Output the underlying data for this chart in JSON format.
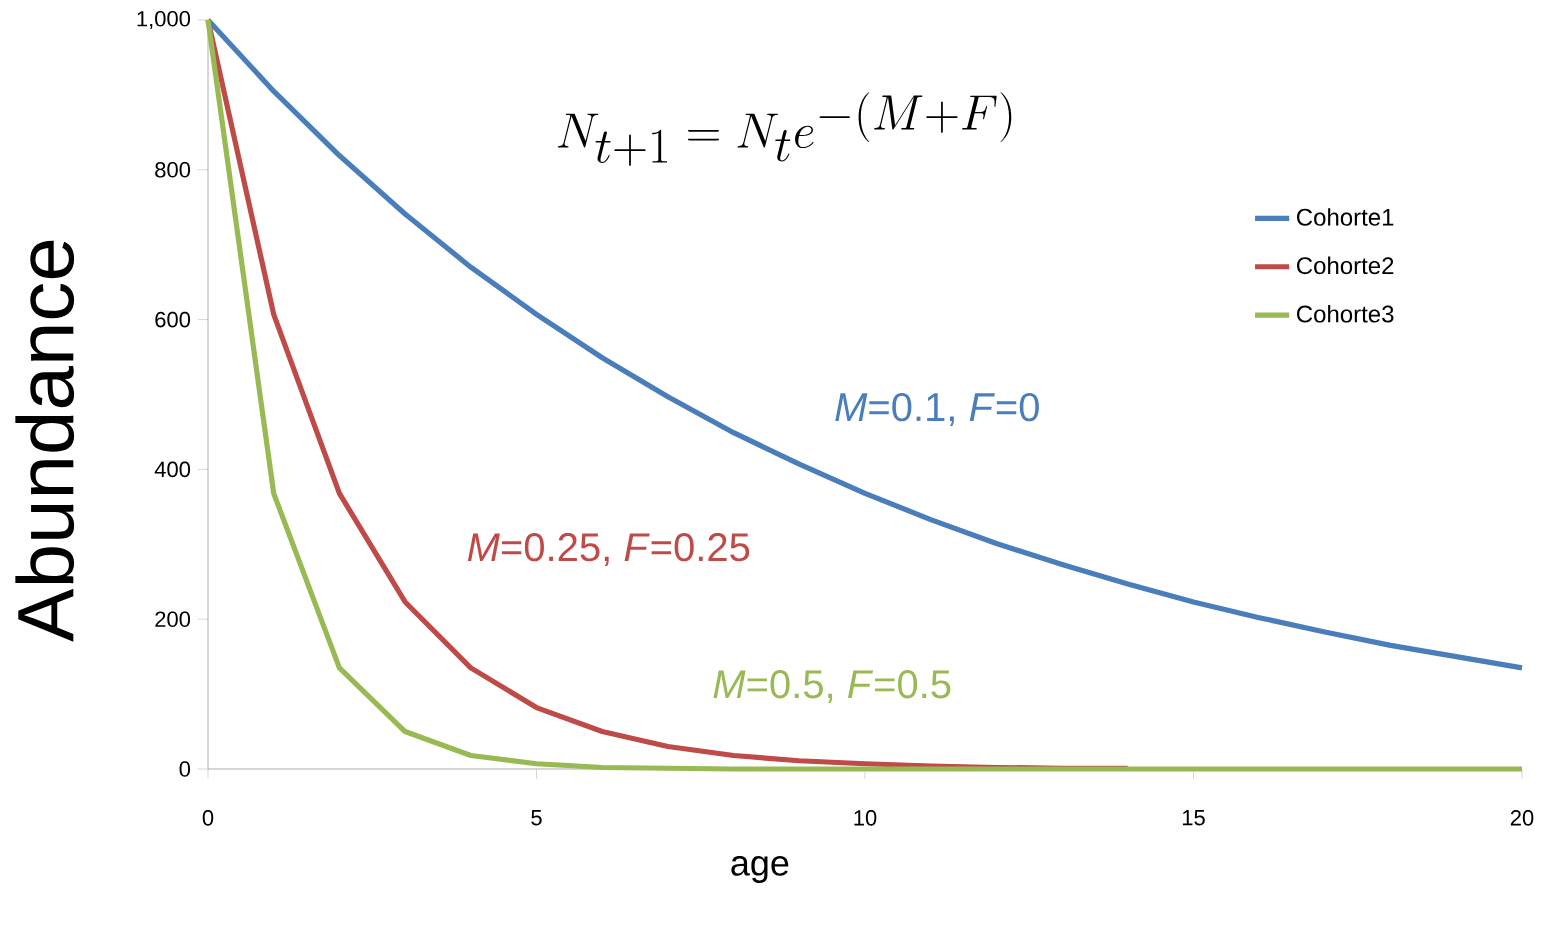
{
  "chart_data": {
    "type": "line",
    "title": "N_{t+1} = N_t e^{-(M+F)}",
    "xlabel": "age",
    "ylabel": "Abundance",
    "x": [
      0,
      1,
      2,
      3,
      4,
      5,
      6,
      7,
      8,
      9,
      10,
      11,
      12,
      13,
      14,
      15,
      16,
      17,
      18,
      19,
      20
    ],
    "series": [
      {
        "name": "Cohorte1",
        "color": "#4a7ebb",
        "values": [
          1000,
          905,
          819,
          741,
          670,
          607,
          549,
          497,
          449,
          407,
          368,
          333,
          301,
          273,
          247,
          223,
          202,
          183,
          165,
          150,
          135
        ]
      },
      {
        "name": "Cohorte2",
        "color": "#be4b48",
        "values": [
          1000,
          607,
          368,
          223,
          135,
          82,
          50,
          30,
          18,
          11,
          7,
          4,
          2,
          1,
          1,
          null,
          null,
          null,
          null,
          null,
          null
        ]
      },
      {
        "name": "Cohorte3",
        "color": "#98b954",
        "values": [
          1000,
          368,
          135,
          50,
          18,
          7,
          2,
          1,
          0,
          0,
          0,
          0,
          0,
          0,
          0,
          0,
          0,
          0,
          0,
          0,
          0
        ]
      }
    ],
    "annotations": [
      "*M*=0.1, *F*=0",
      "*M*=0.25, *F*=0.25",
      "*M*=0.5, *F*=0.5"
    ],
    "xlim": [
      0,
      20
    ],
    "ylim": [
      0,
      1000
    ],
    "xticks": [
      0,
      5,
      10,
      15,
      20
    ],
    "yticks": [
      0,
      200,
      400,
      600,
      800,
      {
        "value": 1000,
        "label": "1,000"
      }
    ],
    "grid": false,
    "legend": "top right",
    "marker": "none",
    "line_style": "solid"
  }
}
